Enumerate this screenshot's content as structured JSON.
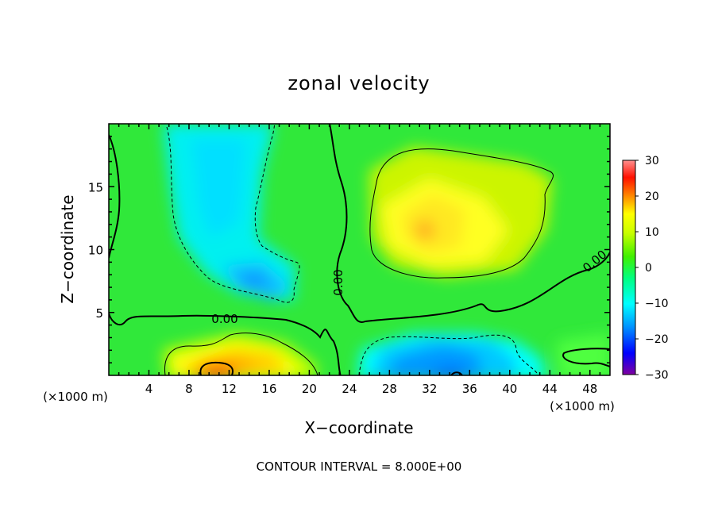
{
  "chart_data": {
    "type": "heatmap",
    "title": "zonal velocity",
    "xlabel": "X−coordinate",
    "ylabel": "Z−coordinate",
    "x_unit": "(×1000 m)",
    "x_unit_right": "(×1000 m)",
    "xlim": [
      0,
      50
    ],
    "ylim": [
      0,
      20
    ],
    "x_ticks": [
      4,
      8,
      12,
      16,
      20,
      24,
      28,
      32,
      36,
      40,
      44,
      48
    ],
    "y_ticks": [
      5,
      10,
      15
    ],
    "footer": "CONTOUR INTERVAL = 8.000E+00",
    "contour_label": "0.00",
    "contour_interval": 8,
    "colorbar": {
      "range": [
        -30,
        30
      ],
      "ticks": [
        30,
        20,
        10,
        0,
        -10,
        -20,
        -30
      ],
      "tick_labels": [
        "30",
        "20",
        "10",
        "0",
        "−10",
        "−20",
        "−30"
      ],
      "colors": [
        "#8000a0",
        "#0000ff",
        "#00a0ff",
        "#00ffff",
        "#00ff80",
        "#80ff00",
        "#ffff00",
        "#ff8000",
        "#ff0000",
        "#ff9090"
      ]
    },
    "features": [
      {
        "name": "upper-right positive maximum",
        "x": 30.5,
        "z": 11.5,
        "value": 12
      },
      {
        "name": "upper-left negative minimum",
        "x": 13.5,
        "z": 7.5,
        "value": -12
      },
      {
        "name": "lower-left positive maximum",
        "x": 11,
        "z": 0.5,
        "value": 18
      },
      {
        "name": "lower-right negative minimum",
        "x": 33,
        "z": 1.2,
        "value": -14
      }
    ]
  }
}
